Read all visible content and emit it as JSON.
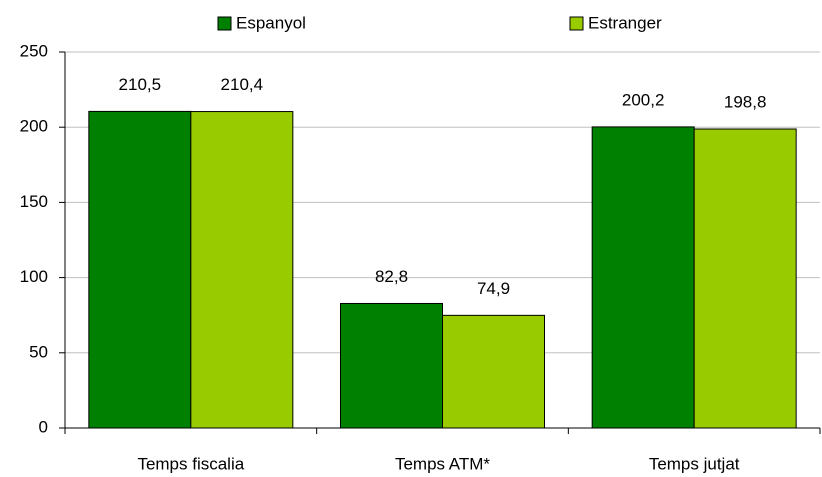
{
  "chart_data": {
    "type": "bar",
    "categories": [
      "Temps fiscalia",
      "Temps ATM*",
      "Temps jutjat"
    ],
    "series": [
      {
        "name": "Espanyol",
        "color": "#008000",
        "values": [
          210.5,
          82.8,
          200.2
        ],
        "value_labels": [
          "210,5",
          "82,8",
          "200,2"
        ]
      },
      {
        "name": "Estranger",
        "color": "#99cc00",
        "values": [
          210.4,
          74.9,
          198.8
        ],
        "value_labels": [
          "210,4",
          "74,9",
          "198,8"
        ]
      }
    ],
    "ylim": [
      0,
      250
    ],
    "yticks": [
      0,
      50,
      100,
      150,
      200,
      250
    ],
    "grid": true,
    "legend": "top"
  }
}
